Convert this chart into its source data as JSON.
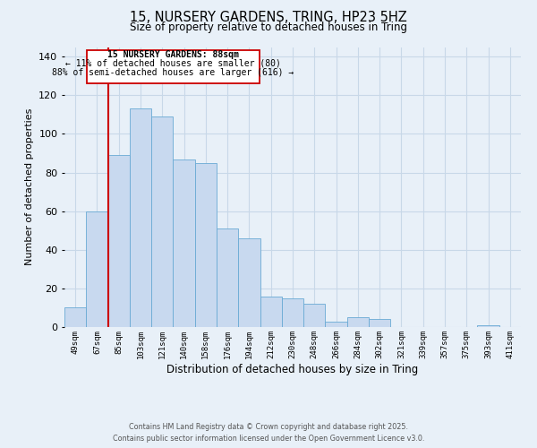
{
  "title": "15, NURSERY GARDENS, TRING, HP23 5HZ",
  "subtitle": "Size of property relative to detached houses in Tring",
  "xlabel": "Distribution of detached houses by size in Tring",
  "ylabel": "Number of detached properties",
  "bar_color": "#c8d9ef",
  "bar_edge_color": "#6aaad4",
  "grid_color": "#c8d8e8",
  "background_color": "#e8f0f8",
  "bin_labels": [
    "49sqm",
    "67sqm",
    "85sqm",
    "103sqm",
    "121sqm",
    "140sqm",
    "158sqm",
    "176sqm",
    "194sqm",
    "212sqm",
    "230sqm",
    "248sqm",
    "266sqm",
    "284sqm",
    "302sqm",
    "321sqm",
    "339sqm",
    "357sqm",
    "375sqm",
    "393sqm",
    "411sqm"
  ],
  "bar_heights": [
    10,
    60,
    89,
    113,
    109,
    87,
    85,
    51,
    46,
    16,
    15,
    12,
    3,
    5,
    4,
    0,
    0,
    0,
    0,
    1,
    0
  ],
  "ylim": [
    0,
    145
  ],
  "yticks": [
    0,
    20,
    40,
    60,
    80,
    100,
    120,
    140
  ],
  "annotation_title": "15 NURSERY GARDENS: 88sqm",
  "annotation_line1": "← 11% of detached houses are smaller (80)",
  "annotation_line2": "88% of semi-detached houses are larger (616) →",
  "annotation_box_color": "#ffffff",
  "annotation_border_color": "#cc0000",
  "line_color": "#cc0000",
  "footer_line1": "Contains HM Land Registry data © Crown copyright and database right 2025.",
  "footer_line2": "Contains public sector information licensed under the Open Government Licence v3.0."
}
